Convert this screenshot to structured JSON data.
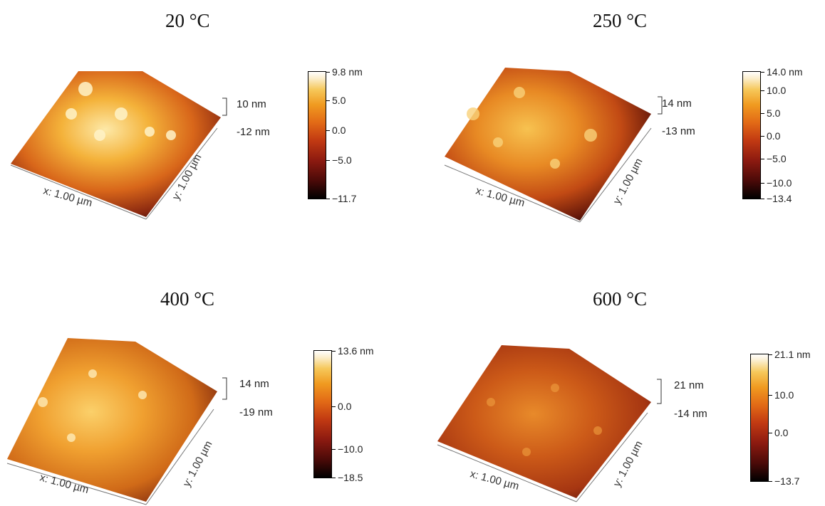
{
  "panels": [
    {
      "title": "20 °C",
      "z_max": "10 nm",
      "z_min": "-12 nm",
      "x_axis": "x: 1.00 µm",
      "y_axis": "y: 1.00 µm",
      "colorbar": {
        "max_label": "9.8 nm",
        "ticks": [
          "5.0",
          "0.0",
          "−5.0"
        ],
        "min_label": "−11.7",
        "max": 9.8,
        "min": -11.7,
        "tick_values": [
          5.0,
          0.0,
          -5.0
        ]
      }
    },
    {
      "title": "250 °C",
      "z_max": "14 nm",
      "z_min": "-13 nm",
      "x_axis": "x: 1.00 µm",
      "y_axis": "y: 1.00 µm",
      "colorbar": {
        "max_label": "14.0 nm",
        "ticks": [
          "10.0",
          "5.0",
          "0.0",
          "−5.0",
          "−10.0"
        ],
        "min_label": "−13.4",
        "max": 14.0,
        "min": -13.4,
        "tick_values": [
          10.0,
          5.0,
          0.0,
          -5.0,
          -10.0
        ]
      }
    },
    {
      "title": "400 °C",
      "z_max": "14 nm",
      "z_min": "-19 nm",
      "x_axis": "x: 1.00 µm",
      "y_axis": "y: 1.00 µm",
      "colorbar": {
        "max_label": "13.6 nm",
        "ticks": [
          "0.0",
          "−10.0"
        ],
        "min_label": "−18.5",
        "max": 13.6,
        "min": -18.5,
        "tick_values": [
          0.0,
          -10.0
        ]
      }
    },
    {
      "title": "600 °C",
      "z_max": "21 nm",
      "z_min": "-14 nm",
      "x_axis": "x: 1.00 µm",
      "y_axis": "y: 1.00 µm",
      "colorbar": {
        "max_label": "21.1 nm",
        "ticks": [
          "10.0",
          "0.0"
        ],
        "min_label": "−13.7",
        "max": 21.1,
        "min": -13.7,
        "tick_values": [
          10.0,
          0.0
        ]
      }
    }
  ],
  "colors": {
    "low": "#000000",
    "mid": "#c23a12",
    "high": "#ffffff"
  }
}
